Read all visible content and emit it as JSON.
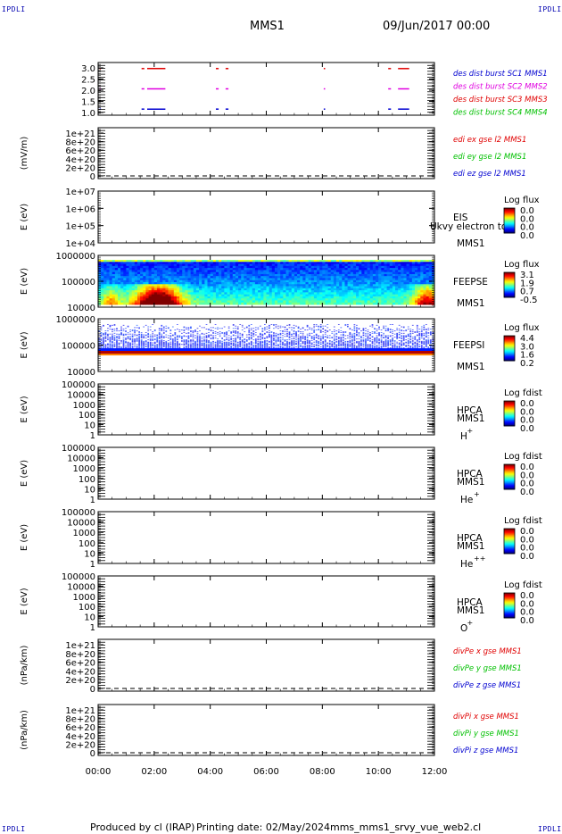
{
  "page": {
    "corner_label": "IPDLI",
    "spacecraft": "MMS1",
    "date": "09/Jun/2017 00:00",
    "footer_producer": "Produced by cl (IRAP)",
    "footer_date": "Printing date: 02/May/2024",
    "footer_file": "mms_mms1_srvy_vue_web2.cl"
  },
  "time_axis": {
    "ticks": [
      "00:00",
      "02:00",
      "04:00",
      "06:00",
      "08:00",
      "10:00",
      "12:00"
    ],
    "range_hours": [
      0,
      12
    ]
  },
  "colors": {
    "red": "#e00000",
    "magenta": "#e000e0",
    "green": "#00c000",
    "blue": "#0000d0"
  },
  "chart_data": [
    {
      "type": "scatter",
      "panel": "burst",
      "ylabel": "",
      "yticks": [
        "3.0",
        "2.5",
        "2.0",
        "1.5",
        "1.0"
      ],
      "yrange": [
        0.7,
        3.3
      ],
      "legend": [
        {
          "text": "des dist burst SC1 MMS1",
          "color": "blue"
        },
        {
          "text": "des dist burst SC2 MMS2",
          "color": "magenta"
        },
        {
          "text": "des dist burst SC3 MMS3",
          "color": "red"
        },
        {
          "text": "des dist burst SC4 MMS4",
          "color": "green"
        }
      ],
      "series": [
        {
          "level": 3.0,
          "color": "red",
          "intervals": [
            [
              0.05,
              0.1
            ],
            [
              1.55,
              1.65
            ],
            [
              1.75,
              2.4
            ],
            [
              4.2,
              4.3
            ],
            [
              4.55,
              4.65
            ],
            [
              8.05,
              8.1
            ],
            [
              10.35,
              10.45
            ],
            [
              10.7,
              11.1
            ]
          ]
        },
        {
          "level": 2.0,
          "color": "magenta",
          "intervals": [
            [
              0.05,
              0.1
            ],
            [
              1.55,
              1.65
            ],
            [
              1.75,
              2.4
            ],
            [
              4.2,
              4.3
            ],
            [
              4.55,
              4.65
            ],
            [
              8.05,
              8.1
            ],
            [
              10.35,
              10.45
            ],
            [
              10.7,
              11.1
            ]
          ]
        },
        {
          "level": 1.0,
          "color": "blue",
          "intervals": [
            [
              0.05,
              0.1
            ],
            [
              1.55,
              1.65
            ],
            [
              1.75,
              2.4
            ],
            [
              4.2,
              4.3
            ],
            [
              4.55,
              4.65
            ],
            [
              8.05,
              8.1
            ],
            [
              10.35,
              10.45
            ],
            [
              10.7,
              11.1
            ]
          ]
        }
      ]
    },
    {
      "type": "line",
      "panel": "edi",
      "ylabel": "(mV/m)",
      "yticks": [
        "1e+21",
        "8e+20",
        "6e+20",
        "4e+20",
        "2e+20",
        "0"
      ],
      "legend": [
        {
          "text": "edi ex gse l2 MMS1",
          "color": "red"
        },
        {
          "text": "edi ey gse l2 MMS1",
          "color": "green"
        },
        {
          "text": "edi ez gse l2 MMS1",
          "color": "blue"
        }
      ]
    },
    {
      "type": "heatmap",
      "panel": "eis",
      "ylabel": "E (eV)",
      "yticks": [
        "1e+07",
        "1e+06",
        "1e+05",
        "1e+04"
      ],
      "instrument": "EIS",
      "spacecraft": "MMS1",
      "overlay_text": "Ukvy electron to",
      "colorbar": {
        "title": "Log flux",
        "ticks": [
          "0.0",
          "0.0",
          "0.0",
          "0.0"
        ]
      }
    },
    {
      "type": "heatmap",
      "panel": "feepse",
      "ylabel": "E (eV)",
      "yticks": [
        "1000000",
        "100000",
        "10000"
      ],
      "instrument": "FEEPSE",
      "spacecraft": "MMS1",
      "colorbar": {
        "title": "Log flux",
        "ticks": [
          "3.1",
          "1.9",
          "0.7",
          "-0.5"
        ]
      }
    },
    {
      "type": "heatmap",
      "panel": "feepsi",
      "ylabel": "E (eV)",
      "yticks": [
        "1000000",
        "100000",
        "10000"
      ],
      "instrument": "FEEPSI",
      "spacecraft": "MMS1",
      "colorbar": {
        "title": "Log flux",
        "ticks": [
          "4.4",
          "3.0",
          "1.6",
          "0.2"
        ]
      }
    },
    {
      "type": "heatmap",
      "panel": "hpca_h",
      "ylabel": "E (eV)",
      "yticks": [
        "100000",
        "10000",
        "1000",
        "100",
        "10",
        "1"
      ],
      "instrument": "HPCA",
      "spacecraft": "MMS1",
      "species": "H",
      "charge": "+",
      "colorbar": {
        "title": "Log fdist",
        "ticks": [
          "0.0",
          "0.0",
          "0.0",
          "0.0"
        ]
      }
    },
    {
      "type": "heatmap",
      "panel": "hpca_he",
      "ylabel": "E (eV)",
      "yticks": [
        "100000",
        "10000",
        "1000",
        "100",
        "10",
        "1"
      ],
      "instrument": "HPCA",
      "spacecraft": "MMS1",
      "species": "He",
      "charge": "+",
      "colorbar": {
        "title": "Log fdist",
        "ticks": [
          "0.0",
          "0.0",
          "0.0",
          "0.0"
        ]
      }
    },
    {
      "type": "heatmap",
      "panel": "hpca_he2",
      "ylabel": "E (eV)",
      "yticks": [
        "100000",
        "10000",
        "1000",
        "100",
        "10",
        "1"
      ],
      "instrument": "HPCA",
      "spacecraft": "MMS1",
      "species": "He",
      "charge": "++",
      "colorbar": {
        "title": "Log fdist",
        "ticks": [
          "0.0",
          "0.0",
          "0.0",
          "0.0"
        ]
      }
    },
    {
      "type": "heatmap",
      "panel": "hpca_o",
      "ylabel": "E (eV)",
      "yticks": [
        "100000",
        "10000",
        "1000",
        "100",
        "10",
        "1"
      ],
      "instrument": "HPCA",
      "spacecraft": "MMS1",
      "species": "O",
      "charge": "+",
      "colorbar": {
        "title": "Log fdist",
        "ticks": [
          "0.0",
          "0.0",
          "0.0",
          "0.0"
        ]
      }
    },
    {
      "type": "line",
      "panel": "divpe",
      "ylabel": "(nPa/km)",
      "yticks": [
        "1e+21",
        "8e+20",
        "6e+20",
        "4e+20",
        "2e+20",
        "0"
      ],
      "legend": [
        {
          "text": "divPe x gse MMS1",
          "color": "red"
        },
        {
          "text": "divPe y gse MMS1",
          "color": "green"
        },
        {
          "text": "divPe z gse MMS1",
          "color": "blue"
        }
      ]
    },
    {
      "type": "line",
      "panel": "divpi",
      "ylabel": "(nPa/km)",
      "yticks": [
        "1e+21",
        "8e+20",
        "6e+20",
        "4e+20",
        "2e+20",
        "0"
      ],
      "legend": [
        {
          "text": "divPi x gse MMS1",
          "color": "red"
        },
        {
          "text": "divPi y gse MMS1",
          "color": "green"
        },
        {
          "text": "divPi z gse MMS1",
          "color": "blue"
        }
      ]
    }
  ]
}
